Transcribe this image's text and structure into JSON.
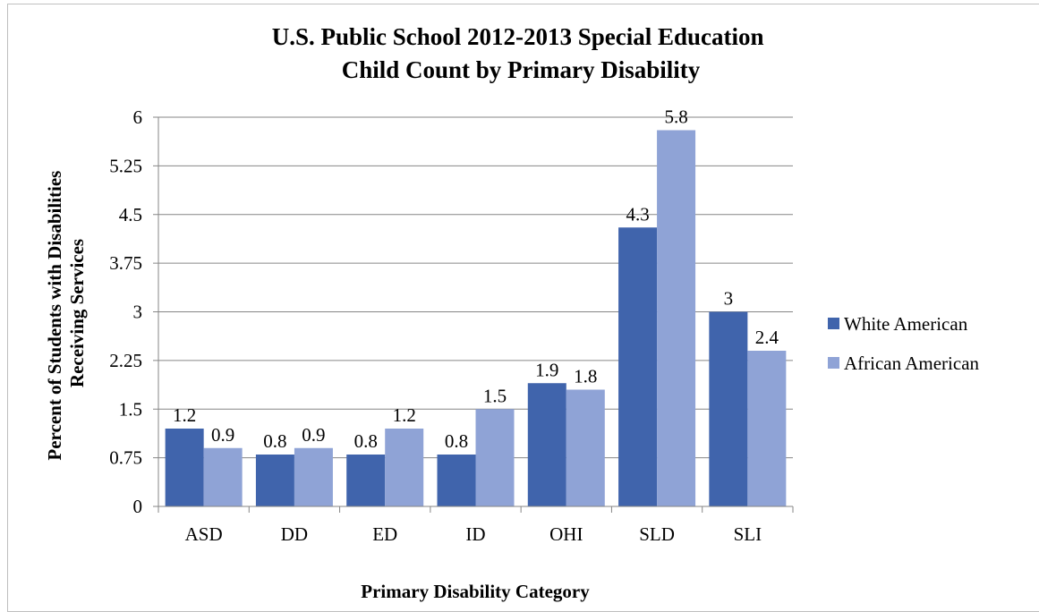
{
  "chart_data": {
    "type": "bar",
    "title_lines": [
      "U.S. Public School 2012-2013 Special Education",
      "Child Count by Primary Disability"
    ],
    "xlabel": "Primary Disability Category",
    "ylabel_lines": [
      "Percent of Students with Disabilities",
      "Receiving Services"
    ],
    "categories": [
      "ASD",
      "DD",
      "ED",
      "ID",
      "OHI",
      "SLD",
      "SLI"
    ],
    "series": [
      {
        "name": "White American",
        "color": "#4064AC",
        "values": [
          1.2,
          0.8,
          0.8,
          0.8,
          1.9,
          4.3,
          3
        ],
        "labels": [
          "1.2",
          "0.8",
          "0.8",
          "0.8",
          "1.9",
          "4.3",
          "3"
        ]
      },
      {
        "name": "African American",
        "color": "#8FA3D6",
        "values": [
          0.9,
          0.9,
          1.2,
          1.5,
          1.8,
          5.8,
          2.4
        ],
        "labels": [
          "0.9",
          "0.9",
          "1.2",
          "1.5",
          "1.8",
          "5.8",
          "2.4"
        ]
      }
    ],
    "ylim": [
      0,
      6
    ],
    "yticks": [
      0,
      0.75,
      1.5,
      2.25,
      3,
      3.75,
      4.5,
      5.25,
      6
    ],
    "ytick_labels": [
      "0",
      "0.75",
      "1.5",
      "2.25",
      "3",
      "3.75",
      "4.5",
      "5.25",
      "6"
    ],
    "grid": true,
    "legend_position": "right",
    "grid_color": "#868686",
    "axis_color": "#868686"
  }
}
